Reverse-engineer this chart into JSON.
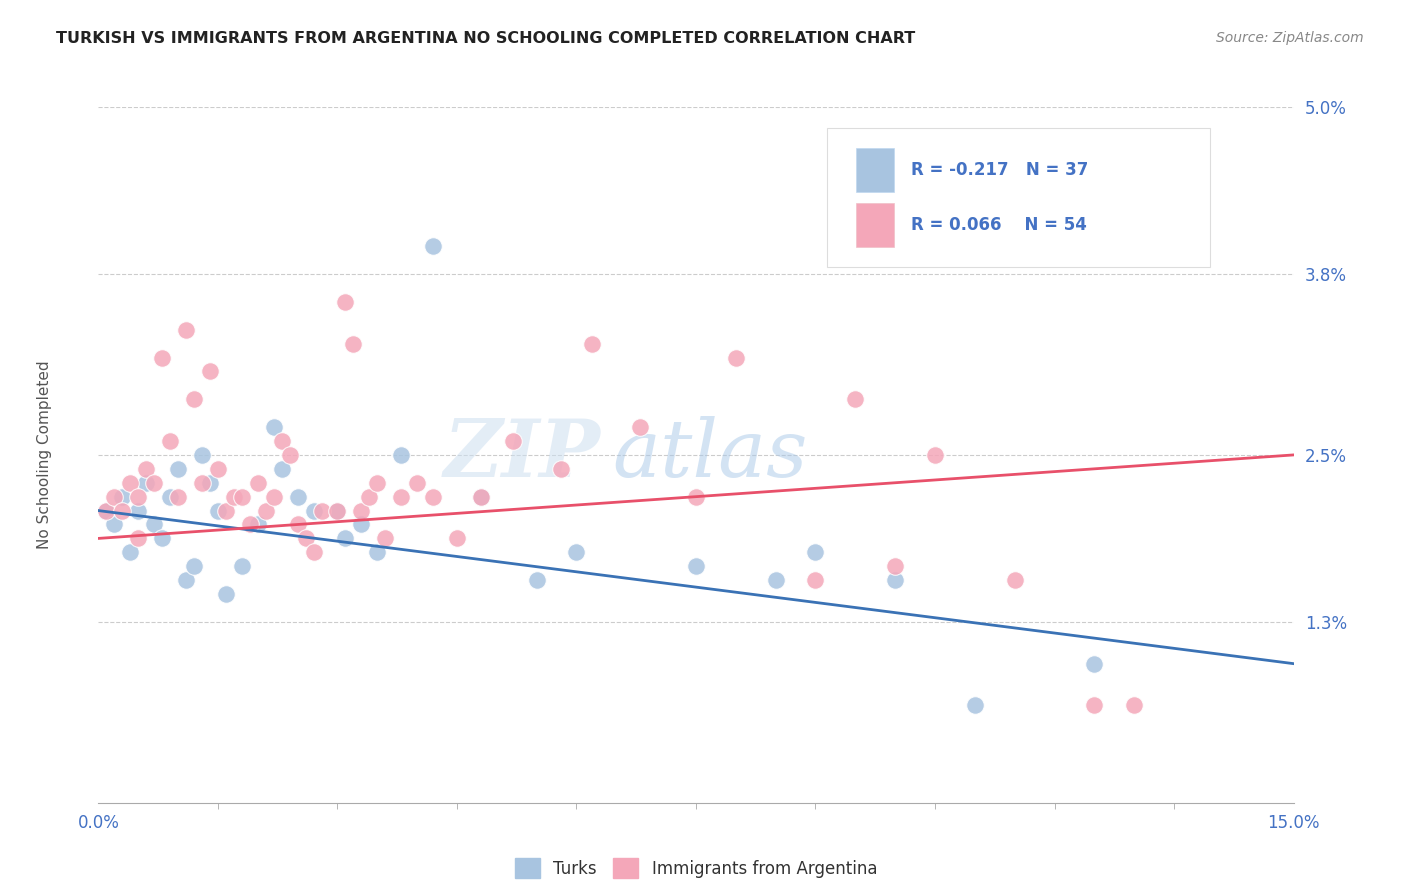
{
  "title": "TURKISH VS IMMIGRANTS FROM ARGENTINA NO SCHOOLING COMPLETED CORRELATION CHART",
  "source": "Source: ZipAtlas.com",
  "ylabel": "No Schooling Completed",
  "x_min": 0.0,
  "x_max": 0.15,
  "y_min": 0.0,
  "y_max": 0.05,
  "x_tick_positions": [
    0.0,
    0.15
  ],
  "x_tick_labels": [
    "0.0%",
    "15.0%"
  ],
  "y_ticks": [
    0.013,
    0.025,
    0.038,
    0.05
  ],
  "y_tick_labels": [
    "1.3%",
    "2.5%",
    "3.8%",
    "5.0%"
  ],
  "legend_labels": [
    "Turks",
    "Immigrants from Argentina"
  ],
  "legend_r": [
    "R = -0.217",
    "R = 0.066"
  ],
  "legend_n": [
    "N = 37",
    "N = 54"
  ],
  "turks_color": "#a8c4e0",
  "argentina_color": "#f4a7b9",
  "turks_line_color": "#3a72b5",
  "argentina_line_color": "#e8506a",
  "watermark_zip": "ZIP",
  "watermark_atlas": "atlas",
  "title_color": "#222222",
  "axis_label_color": "#4472c4",
  "turks_x": [
    0.001,
    0.002,
    0.003,
    0.004,
    0.005,
    0.006,
    0.007,
    0.008,
    0.009,
    0.01,
    0.011,
    0.012,
    0.013,
    0.014,
    0.015,
    0.016,
    0.018,
    0.02,
    0.022,
    0.023,
    0.025,
    0.027,
    0.03,
    0.031,
    0.033,
    0.035,
    0.038,
    0.042,
    0.048,
    0.055,
    0.06,
    0.075,
    0.085,
    0.09,
    0.1,
    0.11,
    0.125
  ],
  "turks_y": [
    0.021,
    0.02,
    0.022,
    0.018,
    0.021,
    0.023,
    0.02,
    0.019,
    0.022,
    0.024,
    0.016,
    0.017,
    0.025,
    0.023,
    0.021,
    0.015,
    0.017,
    0.02,
    0.027,
    0.024,
    0.022,
    0.021,
    0.021,
    0.019,
    0.02,
    0.018,
    0.025,
    0.04,
    0.022,
    0.016,
    0.018,
    0.017,
    0.016,
    0.018,
    0.016,
    0.007,
    0.01
  ],
  "argentina_x": [
    0.001,
    0.002,
    0.003,
    0.004,
    0.005,
    0.005,
    0.006,
    0.007,
    0.008,
    0.009,
    0.01,
    0.011,
    0.012,
    0.013,
    0.014,
    0.015,
    0.016,
    0.017,
    0.018,
    0.019,
    0.02,
    0.021,
    0.022,
    0.023,
    0.024,
    0.025,
    0.026,
    0.027,
    0.028,
    0.03,
    0.031,
    0.032,
    0.033,
    0.034,
    0.035,
    0.036,
    0.038,
    0.04,
    0.042,
    0.045,
    0.048,
    0.052,
    0.058,
    0.062,
    0.068,
    0.075,
    0.08,
    0.09,
    0.095,
    0.1,
    0.105,
    0.115,
    0.125,
    0.13
  ],
  "argentina_y": [
    0.021,
    0.022,
    0.021,
    0.023,
    0.022,
    0.019,
    0.024,
    0.023,
    0.032,
    0.026,
    0.022,
    0.034,
    0.029,
    0.023,
    0.031,
    0.024,
    0.021,
    0.022,
    0.022,
    0.02,
    0.023,
    0.021,
    0.022,
    0.026,
    0.025,
    0.02,
    0.019,
    0.018,
    0.021,
    0.021,
    0.036,
    0.033,
    0.021,
    0.022,
    0.023,
    0.019,
    0.022,
    0.023,
    0.022,
    0.019,
    0.022,
    0.026,
    0.024,
    0.033,
    0.027,
    0.022,
    0.032,
    0.016,
    0.029,
    0.017,
    0.025,
    0.016,
    0.007,
    0.007
  ],
  "turks_line_x0": 0.0,
  "turks_line_y0": 0.021,
  "turks_line_x1": 0.15,
  "turks_line_y1": 0.01,
  "argentina_line_x0": 0.0,
  "argentina_line_y0": 0.019,
  "argentina_line_x1": 0.15,
  "argentina_line_y1": 0.025
}
